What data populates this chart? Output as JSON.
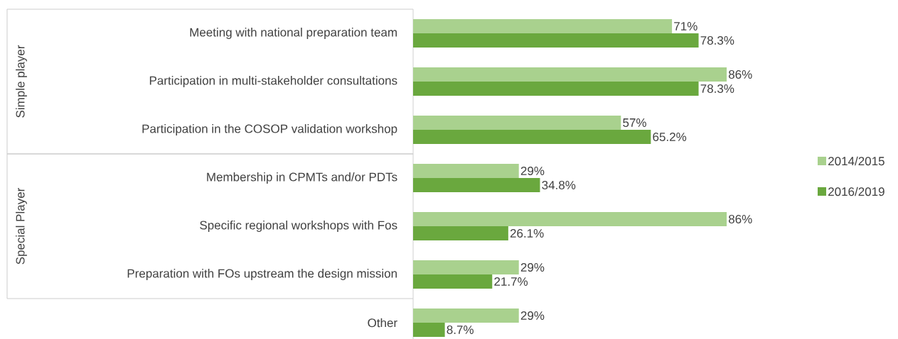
{
  "chart_data": {
    "type": "bar",
    "orientation": "horizontal",
    "categories": [
      "Meeting with national preparation team",
      "Participation in multi-stakeholder consultations",
      "Participation in the COSOP validation workshop",
      "Membership in CPMTs and/or PDTs",
      "Specific regional workshops with Fos",
      "Preparation with FOs upstream the design mission",
      "Other"
    ],
    "series": [
      {
        "name": "2014/2015",
        "color": "#a9d18e",
        "values": [
          71,
          86,
          57,
          29,
          86,
          29,
          29
        ],
        "value_labels": [
          "71%",
          "86%",
          "57%",
          "29%",
          "86%",
          "29%",
          "29%"
        ]
      },
      {
        "name": "2016/2019",
        "color": "#6aa83e",
        "values": [
          78.3,
          78.3,
          65.2,
          34.8,
          26.1,
          21.7,
          8.7
        ],
        "value_labels": [
          "78.3%",
          "78.3%",
          "65.2%",
          "34.8%",
          "26.1%",
          "21.7%",
          "8.7%"
        ]
      }
    ],
    "annotations": [
      "Simple player",
      "Special Player"
    ],
    "legend": "right"
  }
}
